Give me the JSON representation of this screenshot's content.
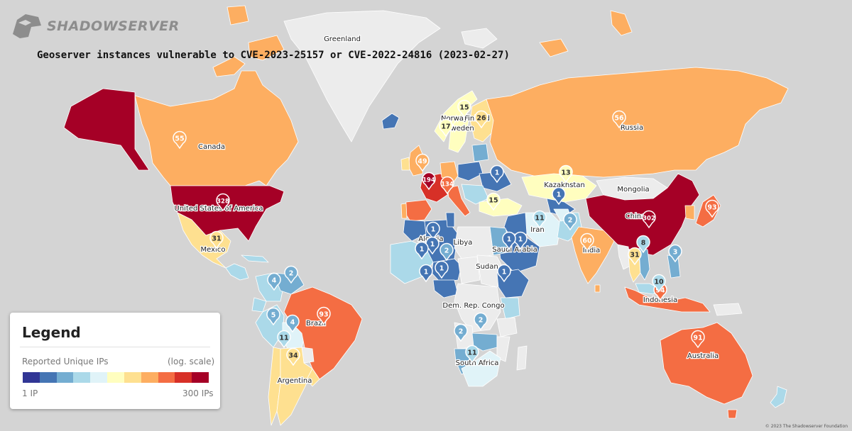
{
  "brand": {
    "name": "SHADOWSERVER"
  },
  "title": "Geoserver instances vulnerable to CVE-2023-25157 or CVE-2022-24816 (2023-02-27)",
  "colors": {
    "ocean": "#d4d4d4",
    "nodata": "#ececec",
    "scale": [
      "#313695",
      "#4575b4",
      "#74add1",
      "#abd9e9",
      "#e0f3f8",
      "#fffebf",
      "#fee090",
      "#fdae61",
      "#f46d43",
      "#d73027",
      "#a50026"
    ]
  },
  "legend": {
    "title": "Legend",
    "subtitle": "Reported Unique IPs",
    "scale_note": "(log. scale)",
    "low": "1 IP",
    "high": "300 IPs"
  },
  "country_labels": [
    {
      "id": "greenland",
      "text": "Greenland"
    },
    {
      "id": "canada",
      "text": "Canada"
    },
    {
      "id": "usa",
      "text": "United States of America"
    },
    {
      "id": "mexico",
      "text": "Mexico"
    },
    {
      "id": "brazil",
      "text": "Brazil"
    },
    {
      "id": "argentina",
      "text": "Argentina"
    },
    {
      "id": "norway",
      "text": "Norway"
    },
    {
      "id": "finland",
      "text": "Finland"
    },
    {
      "id": "sweden",
      "text": "Sweden"
    },
    {
      "id": "russia",
      "text": "Russia"
    },
    {
      "id": "kazakhstan",
      "text": "Kazakhstan"
    },
    {
      "id": "mongolia",
      "text": "Mongolia"
    },
    {
      "id": "china",
      "text": "China"
    },
    {
      "id": "iran",
      "text": "Iran"
    },
    {
      "id": "india",
      "text": "India"
    },
    {
      "id": "algeria",
      "text": "Algeria"
    },
    {
      "id": "libya",
      "text": "Libya"
    },
    {
      "id": "saudi",
      "text": "Saudi Arabia"
    },
    {
      "id": "sudan",
      "text": "Sudan"
    },
    {
      "id": "drc",
      "text": "Dem. Rep. Congo"
    },
    {
      "id": "southafrica",
      "text": "South Africa"
    },
    {
      "id": "indonesia",
      "text": "Indonesia"
    },
    {
      "id": "australia",
      "text": "Australia"
    }
  ],
  "markers": [
    {
      "id": "usa",
      "count": 328,
      "level": 10
    },
    {
      "id": "china",
      "count": 302,
      "level": 10
    },
    {
      "id": "france",
      "count": 194,
      "level": 10
    },
    {
      "id": "italy",
      "count": 134,
      "level": 8
    },
    {
      "id": "brazil",
      "count": 93,
      "level": 8
    },
    {
      "id": "japan",
      "count": 93,
      "level": 8
    },
    {
      "id": "indonesia",
      "count": 94,
      "level": 8
    },
    {
      "id": "australia",
      "count": 91,
      "level": 8
    },
    {
      "id": "india",
      "count": 60,
      "level": 7
    },
    {
      "id": "russia",
      "count": 56,
      "level": 7
    },
    {
      "id": "canada",
      "count": 55,
      "level": 7
    },
    {
      "id": "uk",
      "count": 49,
      "level": 7
    },
    {
      "id": "argentina",
      "count": 34,
      "level": 6
    },
    {
      "id": "mexico",
      "count": 31,
      "level": 6
    },
    {
      "id": "thailand",
      "count": 31,
      "level": 6
    },
    {
      "id": "finland",
      "count": 26,
      "level": 6
    },
    {
      "id": "norway",
      "count": 15,
      "level": 5
    },
    {
      "id": "sweden",
      "count": 17,
      "level": 5
    },
    {
      "id": "turkey",
      "count": 15,
      "level": 5
    },
    {
      "id": "kazakhstan",
      "count": 13,
      "level": 5
    },
    {
      "id": "iran",
      "count": 11,
      "level": 3
    },
    {
      "id": "southafrica",
      "count": 11,
      "level": 3
    },
    {
      "id": "bolivia",
      "count": 11,
      "level": 3
    },
    {
      "id": "malaysia",
      "count": 10,
      "level": 3
    },
    {
      "id": "vietnam",
      "count": 8,
      "level": 3
    },
    {
      "id": "ecuador",
      "count": 5,
      "level": 2
    },
    {
      "id": "colombia",
      "count": 4,
      "level": 2
    },
    {
      "id": "peru",
      "count": 4,
      "level": 2
    },
    {
      "id": "philippines",
      "count": 3,
      "level": 2
    },
    {
      "id": "venezuela",
      "count": 2,
      "level": 2
    },
    {
      "id": "pakistan",
      "count": 2,
      "level": 2
    },
    {
      "id": "egypt",
      "count": 2,
      "level": 2
    },
    {
      "id": "namibia",
      "count": 2,
      "level": 2
    },
    {
      "id": "zambia",
      "count": 2,
      "level": 2
    },
    {
      "id": "poland",
      "count": 1,
      "level": 1
    },
    {
      "id": "uzbekistan",
      "count": 1,
      "level": 1
    },
    {
      "id": "tunisia",
      "count": 1,
      "level": 1
    },
    {
      "id": "algeria",
      "count": 1,
      "level": 1
    },
    {
      "id": "morocco",
      "count": 1,
      "level": 1
    },
    {
      "id": "niger",
      "count": 1,
      "level": 1
    },
    {
      "id": "chad",
      "count": 1,
      "level": 1
    },
    {
      "id": "iraq",
      "count": 1,
      "level": 1
    },
    {
      "id": "saudi",
      "count": 1,
      "level": 1
    },
    {
      "id": "ethiopia",
      "count": 1,
      "level": 1
    }
  ],
  "footer": "© 2023 The Shadowserver Foundation"
}
